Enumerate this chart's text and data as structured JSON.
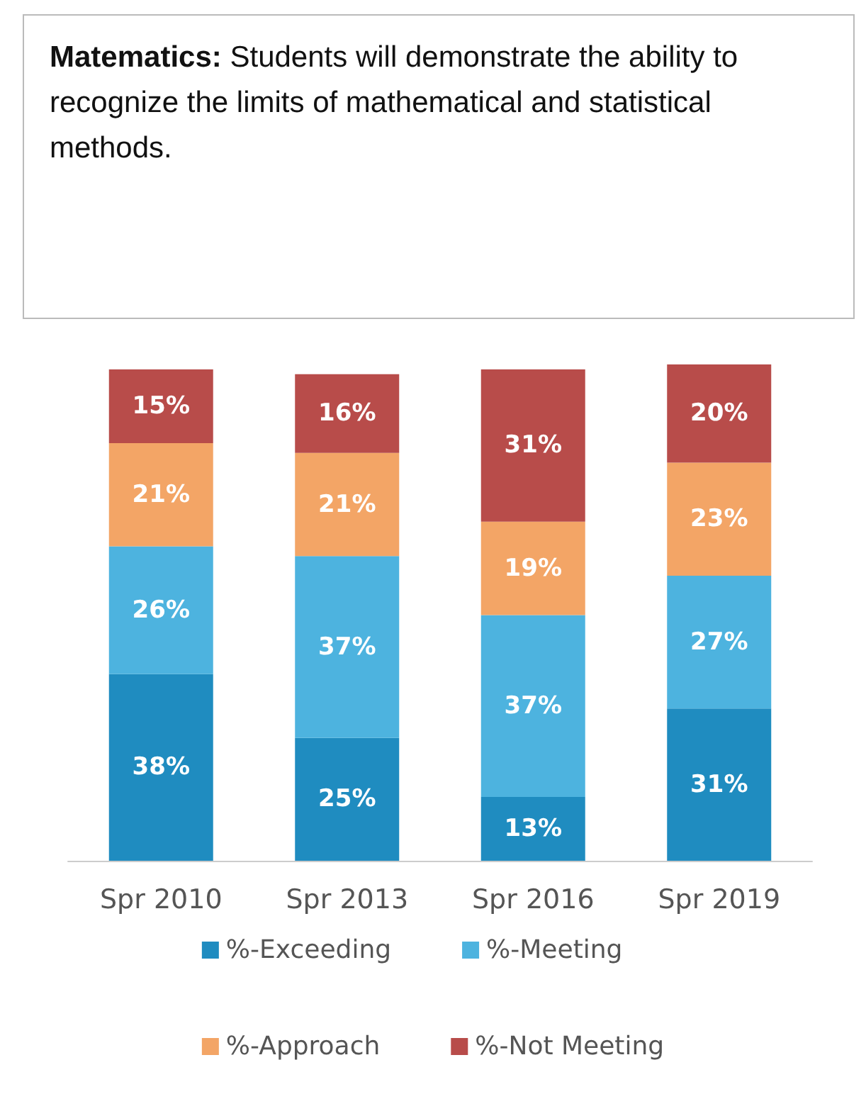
{
  "chart_data": {
    "type": "bar",
    "title": "Matematics:",
    "subtitle": "Students will demonstrate the ability to recognize the limits of mathematical and statistical methods.",
    "categories": [
      "Spr 2010",
      "Spr 2013",
      "Spr 2016",
      "Spr 2019"
    ],
    "stacked": true,
    "legend": "bottom",
    "series": [
      {
        "name": "%-Exceeding",
        "color": "#1f8cc0",
        "values": [
          38,
          25,
          13,
          31
        ],
        "value_labels": [
          "38%",
          "25%",
          "13%",
          "31%"
        ]
      },
      {
        "name": "%-Meeting",
        "color": "#4db3df",
        "values": [
          26,
          37,
          37,
          27
        ],
        "value_labels": [
          "26%",
          "37%",
          "37%",
          "27%"
        ]
      },
      {
        "name": "%-Approach",
        "color": "#f3a566",
        "values": [
          21,
          21,
          19,
          23
        ],
        "value_labels": [
          "21%",
          "21%",
          "19%",
          "23%"
        ]
      },
      {
        "name": "%-Not Meeting",
        "color": "#b84c4a",
        "values": [
          15,
          16,
          31,
          20
        ],
        "value_labels": [
          "15%",
          "16%",
          "31%",
          "20%"
        ]
      }
    ]
  }
}
